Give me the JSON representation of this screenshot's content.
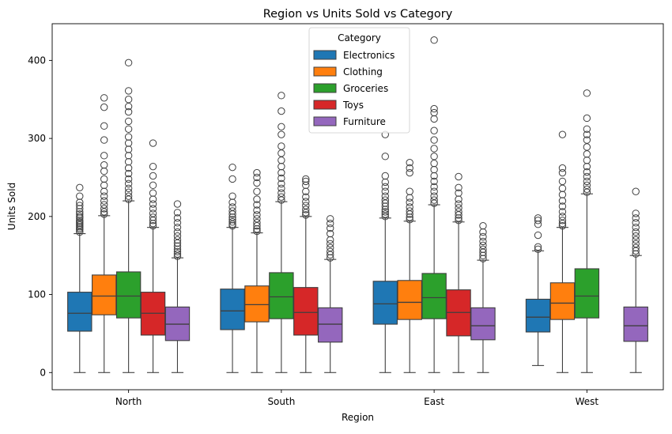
{
  "chart_data": {
    "type": "box",
    "title": "Region vs Units Sold vs Category",
    "xlabel": "Region",
    "ylabel": "Units Sold",
    "categories": [
      "North",
      "South",
      "East",
      "West"
    ],
    "ylim": [
      -22,
      447
    ],
    "yticks": [
      0,
      100,
      200,
      300,
      400
    ],
    "legend": {
      "title": "Category",
      "position": "top-center"
    },
    "series": [
      {
        "name": "Electronics",
        "color": "#1f77b4",
        "boxes": [
          {
            "min": 0,
            "q1": 53,
            "median": 76,
            "q3": 103,
            "max": 178,
            "outliers": [
              180,
              183,
              185,
              187,
              189,
              191,
              193,
              195,
              198,
              200,
              203,
              206,
              210,
              214,
              218,
              226,
              237
            ]
          },
          {
            "min": 0,
            "q1": 55,
            "median": 79,
            "q3": 107,
            "max": 186,
            "outliers": [
              188,
              190,
              193,
              196,
              199,
              203,
              207,
              212,
              218,
              226,
              248,
              263
            ]
          },
          {
            "min": 0,
            "q1": 62,
            "median": 88,
            "q3": 117,
            "max": 198,
            "outliers": [
              200,
              203,
              206,
              209,
              213,
              217,
              221,
              226,
              232,
              238,
              244,
              252,
              277,
              305
            ]
          },
          {
            "min": 9,
            "q1": 52,
            "median": 71,
            "q3": 94,
            "max": 156,
            "outliers": [
              158,
              161,
              176,
              190,
              195,
              198
            ]
          }
        ]
      },
      {
        "name": "Clothing",
        "color": "#ff7f0e",
        "boxes": [
          {
            "min": 0,
            "q1": 74,
            "median": 98,
            "q3": 125,
            "max": 201,
            "outliers": [
              203,
              206,
              210,
              215,
              220,
              226,
              232,
              240,
              248,
              258,
              266,
              278,
              298,
              316,
              340,
              352
            ]
          },
          {
            "min": 0,
            "q1": 65,
            "median": 87,
            "q3": 111,
            "max": 179,
            "outliers": [
              181,
              184,
              188,
              192,
              197,
              202,
              208,
              215,
              222,
              232,
              243,
              250,
              256
            ]
          },
          {
            "min": 0,
            "q1": 68,
            "median": 90,
            "q3": 118,
            "max": 194,
            "outliers": [
              196,
              199,
              203,
              207,
              212,
              218,
              224,
              232,
              256,
              262,
              269
            ]
          },
          {
            "min": 0,
            "q1": 68,
            "median": 89,
            "q3": 115,
            "max": 186,
            "outliers": [
              188,
              191,
              195,
              200,
              206,
              213,
              220,
              228,
              236,
              245,
              256,
              262,
              305
            ]
          }
        ]
      },
      {
        "name": "Groceries",
        "color": "#2ca02c",
        "boxes": [
          {
            "min": 0,
            "q1": 70,
            "median": 98,
            "q3": 129,
            "max": 220,
            "outliers": [
              222,
              226,
              231,
              236,
              242,
              248,
              255,
              262,
              270,
              278,
              286,
              294,
              302,
              312,
              322,
              334,
              341,
              350,
              361,
              397
            ]
          },
          {
            "min": 0,
            "q1": 69,
            "median": 97,
            "q3": 128,
            "max": 219,
            "outliers": [
              221,
              225,
              230,
              236,
              242,
              249,
              256,
              264,
              272,
              281,
              290,
              305,
              315,
              335,
              355
            ]
          },
          {
            "min": 0,
            "q1": 69,
            "median": 96,
            "q3": 127,
            "max": 215,
            "outliers": [
              217,
              221,
              226,
              232,
              238,
              245,
              252,
              260,
              268,
              277,
              287,
              298,
              310,
              325,
              333,
              338,
              426
            ]
          },
          {
            "min": 0,
            "q1": 70,
            "median": 98,
            "q3": 133,
            "max": 229,
            "outliers": [
              231,
              235,
              240,
              245,
              251,
              257,
              264,
              272,
              280,
              289,
              298,
              305,
              312,
              326,
              358
            ]
          }
        ]
      },
      {
        "name": "Toys",
        "color": "#d62728",
        "boxes": [
          {
            "min": 0,
            "q1": 48,
            "median": 76,
            "q3": 103,
            "max": 186,
            "outliers": [
              188,
              191,
              195,
              199,
              204,
              210,
              216,
              222,
              230,
              240,
              252,
              264,
              294
            ]
          },
          {
            "min": 0,
            "q1": 48,
            "median": 77,
            "q3": 109,
            "max": 200,
            "outliers": [
              202,
              205,
              209,
              214,
              219,
              225,
              232,
              240,
              245,
              248
            ]
          },
          {
            "min": 0,
            "q1": 47,
            "median": 77,
            "q3": 106,
            "max": 193,
            "outliers": [
              195,
              198,
              202,
              206,
              211,
              216,
              222,
              230,
              237,
              251
            ]
          },
          null
        ]
      },
      {
        "name": "Furniture",
        "color": "#9467bd",
        "boxes": [
          {
            "min": 0,
            "q1": 41,
            "median": 62,
            "q3": 84,
            "max": 147,
            "outliers": [
              149,
              152,
              155,
              158,
              162,
              166,
              170,
              175,
              180,
              186,
              192,
              198,
              205,
              216
            ]
          },
          {
            "min": 0,
            "q1": 39,
            "median": 62,
            "q3": 83,
            "max": 145,
            "outliers": [
              147,
              151,
              155,
              160,
              165,
              170,
              178,
              185,
              191,
              197
            ]
          },
          {
            "min": 0,
            "q1": 42,
            "median": 60,
            "q3": 83,
            "max": 144,
            "outliers": [
              146,
              150,
              154,
              158,
              163,
              168,
              174,
              180,
              188
            ]
          },
          {
            "min": 0,
            "q1": 40,
            "median": 60,
            "q3": 84,
            "max": 150,
            "outliers": [
              152,
              156,
              160,
              165,
              170,
              175,
              180,
              186,
              192,
              198,
              204,
              232
            ]
          }
        ]
      }
    ]
  }
}
